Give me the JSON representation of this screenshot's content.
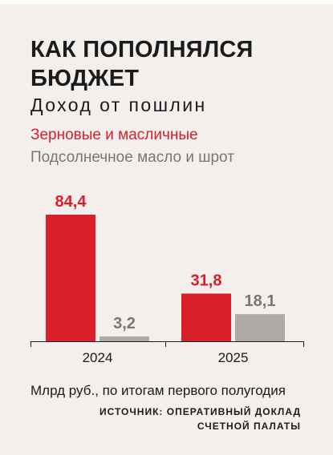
{
  "title": "КАК ПОПОЛНЯЛСЯ БЮДЖЕТ",
  "subtitle": "Доход от пошлин",
  "legend": {
    "series1": "Зерновые и масличные",
    "series2": "Подсолнечное масло и шрот"
  },
  "note": "Млрд руб., по итогам первого полугодия",
  "source": "ИСТОЧНИК: ОПЕРАТИВНЫЙ ДОКЛАД СЧЕТНОЙ ПАЛАТЫ",
  "colors": {
    "series1": "#d81f2a",
    "series2": "#aeaaa6",
    "axis": "#1b1b1b",
    "value_grey_text": "#7a7772"
  },
  "chart_data": {
    "type": "bar",
    "categories": [
      "2024",
      "2025"
    ],
    "series": [
      {
        "name": "Зерновые и масличные",
        "values": [
          84.4,
          31.8
        ],
        "labels": [
          "84,4",
          "31,8"
        ]
      },
      {
        "name": "Подсолнечное масло и шрот",
        "values": [
          3.2,
          18.1
        ],
        "labels": [
          "3,2",
          "18,1"
        ]
      }
    ],
    "title": "КАК ПОПОЛНЯЛСЯ БЮДЖЕТ",
    "subtitle": "Доход от пошлин",
    "ylim": [
      0,
      84.4
    ],
    "grid": false,
    "legend_position": "top-left"
  }
}
